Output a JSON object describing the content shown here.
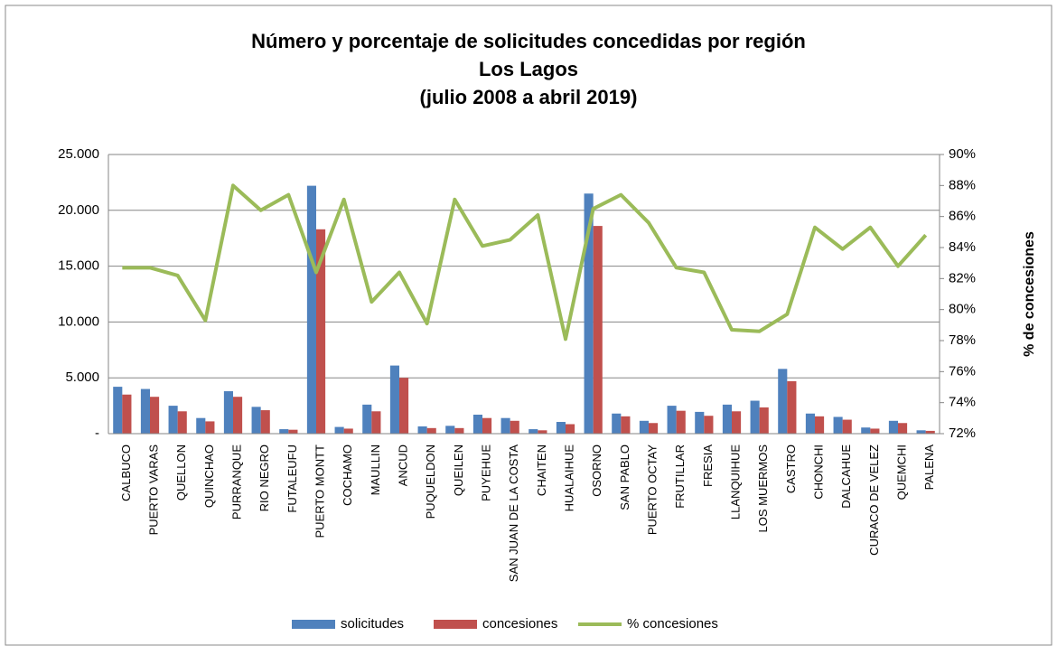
{
  "chart_data": {
    "type": "bar_line",
    "title": [
      "Número y porcentaje de solicitudes concedidas por región",
      "Los Lagos",
      "(julio 2008 a abril 2019)"
    ],
    "y2label": "% de concesiones",
    "categories": [
      "CALBUCO",
      "PUERTO VARAS",
      "QUELLON",
      "QUINCHAO",
      "PURRANQUE",
      "RIO NEGRO",
      "FUTALEUFU",
      "PUERTO MONTT",
      "COCHAMO",
      "MAULLIN",
      "ANCUD",
      "PUQUELDON",
      "QUEILEN",
      "PUYEHUE",
      "SAN JUAN DE LA COSTA",
      "CHAITEN",
      "HUALAIHUE",
      "OSORNO",
      "SAN PABLO",
      "PUERTO OCTAY",
      "FRUTILLAR",
      "FRESIA",
      "LLANQUIHUE",
      "LOS MUERMOS",
      "CASTRO",
      "CHONCHI",
      "DALCAHUE",
      "CURACO DE VELEZ",
      "QUEMCHI",
      "PALENA"
    ],
    "series": [
      {
        "name": "solicitudes",
        "color": "#4f81bd",
        "type": "bar",
        "values": [
          4200,
          4000,
          2500,
          1400,
          3800,
          2400,
          400,
          22200,
          600,
          2600,
          6100,
          650,
          700,
          1700,
          1400,
          400,
          1050,
          21500,
          1800,
          1150,
          2500,
          1950,
          2600,
          2950,
          5800,
          1800,
          1500,
          550,
          1150,
          300
        ]
      },
      {
        "name": "concesiones",
        "color": "#c0504d",
        "type": "bar",
        "values": [
          3500,
          3300,
          2000,
          1100,
          3300,
          2100,
          350,
          18300,
          450,
          2000,
          5000,
          500,
          500,
          1400,
          1150,
          300,
          850,
          18600,
          1550,
          950,
          2050,
          1600,
          2000,
          2350,
          4700,
          1550,
          1250,
          450,
          950,
          250
        ]
      },
      {
        "name": "% concesiones",
        "color": "#9bbb59",
        "type": "line",
        "axis": "y2",
        "values": [
          82.7,
          82.7,
          82.2,
          79.3,
          88.0,
          86.4,
          87.4,
          82.4,
          87.1,
          80.5,
          82.4,
          79.1,
          87.1,
          84.1,
          84.5,
          86.1,
          78.1,
          86.5,
          87.4,
          85.6,
          82.7,
          82.4,
          78.7,
          78.6,
          79.7,
          85.3,
          83.9,
          85.3,
          82.8,
          84.8
        ]
      }
    ],
    "ylim": [
      0,
      25000
    ],
    "yticks": [
      {
        "value": 0,
        "label": "-"
      },
      {
        "value": 5000,
        "label": "5.000"
      },
      {
        "value": 10000,
        "label": "10.000"
      },
      {
        "value": 15000,
        "label": "15.000"
      },
      {
        "value": 20000,
        "label": "20.000"
      },
      {
        "value": 25000,
        "label": "25.000"
      }
    ],
    "y2lim": [
      72,
      90
    ],
    "y2ticks": [
      {
        "value": 72,
        "label": "72%"
      },
      {
        "value": 74,
        "label": "74%"
      },
      {
        "value": 76,
        "label": "76%"
      },
      {
        "value": 78,
        "label": "78%"
      },
      {
        "value": 80,
        "label": "80%"
      },
      {
        "value": 82,
        "label": "82%"
      },
      {
        "value": 84,
        "label": "84%"
      },
      {
        "value": 86,
        "label": "86%"
      },
      {
        "value": 88,
        "label": "88%"
      },
      {
        "value": 90,
        "label": "90%"
      }
    ],
    "grid": true,
    "legend": "bottom"
  }
}
